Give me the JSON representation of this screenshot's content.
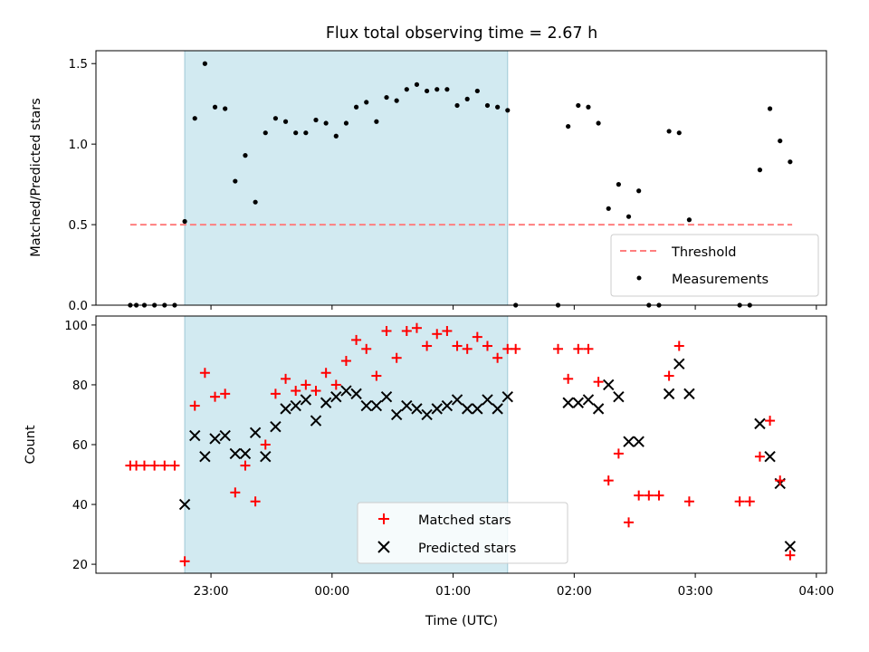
{
  "chart_data": [
    {
      "type": "scatter",
      "title": "Flux total observing time = 2.67 h",
      "xlabel": "",
      "ylabel": "Matched/Predicted stars",
      "ylim": [
        0,
        1.58
      ],
      "yticks": [
        0.0,
        0.5,
        1.0,
        1.5
      ],
      "ytick_labels": [
        "0.0",
        "0.5",
        "1.0",
        "1.5"
      ],
      "x_unit": "minutes since 00:00 UTC",
      "xlim": [
        -117,
        245
      ],
      "highlight_span": {
        "x_start": -73,
        "x_end": 87,
        "color": "#add8e6"
      },
      "threshold": {
        "name": "Threshold",
        "value": 0.5,
        "x_start": -100,
        "x_end": 228,
        "color": "#ff7f7f"
      },
      "legend": {
        "position": "lower right",
        "entries": [
          "Threshold",
          "Measurements"
        ]
      },
      "series": [
        {
          "name": "Measurements",
          "color": "#000000",
          "points": [
            [
              -100,
              0.0
            ],
            [
              -97,
              0.0
            ],
            [
              -93,
              0.0
            ],
            [
              -88,
              0.0
            ],
            [
              -83,
              0.0
            ],
            [
              -78,
              0.0
            ],
            [
              -73,
              0.52
            ],
            [
              -68,
              1.16
            ],
            [
              -63,
              1.5
            ],
            [
              -58,
              1.23
            ],
            [
              -53,
              1.22
            ],
            [
              -48,
              0.77
            ],
            [
              -43,
              0.93
            ],
            [
              -38,
              0.64
            ],
            [
              -33,
              1.07
            ],
            [
              -28,
              1.16
            ],
            [
              -23,
              1.14
            ],
            [
              -18,
              1.07
            ],
            [
              -13,
              1.07
            ],
            [
              -8,
              1.15
            ],
            [
              -3,
              1.13
            ],
            [
              2,
              1.05
            ],
            [
              7,
              1.13
            ],
            [
              12,
              1.23
            ],
            [
              17,
              1.26
            ],
            [
              22,
              1.14
            ],
            [
              27,
              1.29
            ],
            [
              32,
              1.27
            ],
            [
              37,
              1.34
            ],
            [
              42,
              1.37
            ],
            [
              47,
              1.33
            ],
            [
              52,
              1.34
            ],
            [
              57,
              1.34
            ],
            [
              62,
              1.24
            ],
            [
              67,
              1.28
            ],
            [
              72,
              1.33
            ],
            [
              77,
              1.24
            ],
            [
              82,
              1.23
            ],
            [
              87,
              1.21
            ],
            [
              91,
              0.0
            ],
            [
              112,
              0.0
            ],
            [
              117,
              1.11
            ],
            [
              122,
              1.24
            ],
            [
              127,
              1.23
            ],
            [
              132,
              1.13
            ],
            [
              137,
              0.6
            ],
            [
              142,
              0.75
            ],
            [
              147,
              0.55
            ],
            [
              152,
              0.71
            ],
            [
              157,
              0.0
            ],
            [
              162,
              0.0
            ],
            [
              167,
              1.08
            ],
            [
              172,
              1.07
            ],
            [
              177,
              0.53
            ],
            [
              202,
              0.0
            ],
            [
              207,
              0.0
            ],
            [
              212,
              0.84
            ],
            [
              217,
              1.22
            ],
            [
              222,
              1.02
            ],
            [
              227,
              0.89
            ]
          ]
        }
      ]
    },
    {
      "type": "scatter",
      "xlabel": "Time (UTC)",
      "ylabel": "Count",
      "ylim": [
        17,
        103
      ],
      "yticks": [
        20,
        40,
        60,
        80,
        100
      ],
      "ytick_labels": [
        "20",
        "40",
        "60",
        "80",
        "100"
      ],
      "x_unit": "minutes since 00:00 UTC",
      "xlim": [
        -117,
        245
      ],
      "xticks": [
        -60,
        0,
        60,
        120,
        180,
        240
      ],
      "xtick_labels": [
        "23:00",
        "00:00",
        "01:00",
        "02:00",
        "03:00",
        "04:00"
      ],
      "highlight_span": {
        "x_start": -73,
        "x_end": 87,
        "color": "#add8e6"
      },
      "legend": {
        "position": "lower center",
        "entries": [
          "Matched stars",
          "Predicted stars"
        ]
      },
      "series": [
        {
          "name": "Matched stars",
          "marker": "+",
          "color": "#ff0000",
          "points": [
            [
              -100,
              53
            ],
            [
              -97,
              53
            ],
            [
              -93,
              53
            ],
            [
              -88,
              53
            ],
            [
              -83,
              53
            ],
            [
              -78,
              53
            ],
            [
              -73,
              21
            ],
            [
              -68,
              73
            ],
            [
              -63,
              84
            ],
            [
              -58,
              76
            ],
            [
              -53,
              77
            ],
            [
              -48,
              44
            ],
            [
              -43,
              53
            ],
            [
              -38,
              41
            ],
            [
              -33,
              60
            ],
            [
              -28,
              77
            ],
            [
              -23,
              82
            ],
            [
              -18,
              78
            ],
            [
              -13,
              80
            ],
            [
              -8,
              78
            ],
            [
              -3,
              84
            ],
            [
              2,
              80
            ],
            [
              7,
              88
            ],
            [
              12,
              95
            ],
            [
              17,
              92
            ],
            [
              22,
              83
            ],
            [
              27,
              98
            ],
            [
              32,
              89
            ],
            [
              37,
              98
            ],
            [
              42,
              99
            ],
            [
              47,
              93
            ],
            [
              52,
              97
            ],
            [
              57,
              98
            ],
            [
              62,
              93
            ],
            [
              67,
              92
            ],
            [
              72,
              96
            ],
            [
              77,
              93
            ],
            [
              82,
              89
            ],
            [
              87,
              92
            ],
            [
              91,
              92
            ],
            [
              112,
              92
            ],
            [
              117,
              82
            ],
            [
              122,
              92
            ],
            [
              127,
              92
            ],
            [
              132,
              81
            ],
            [
              137,
              48
            ],
            [
              142,
              57
            ],
            [
              147,
              34
            ],
            [
              152,
              43
            ],
            [
              157,
              43
            ],
            [
              162,
              43
            ],
            [
              167,
              83
            ],
            [
              172,
              93
            ],
            [
              177,
              41
            ],
            [
              202,
              41
            ],
            [
              207,
              41
            ],
            [
              212,
              56
            ],
            [
              217,
              68
            ],
            [
              222,
              48
            ],
            [
              227,
              23
            ]
          ]
        },
        {
          "name": "Predicted stars",
          "marker": "x",
          "color": "#000000",
          "points": [
            [
              -73,
              40
            ],
            [
              -68,
              63
            ],
            [
              -63,
              56
            ],
            [
              -58,
              62
            ],
            [
              -53,
              63
            ],
            [
              -48,
              57
            ],
            [
              -43,
              57
            ],
            [
              -38,
              64
            ],
            [
              -33,
              56
            ],
            [
              -28,
              66
            ],
            [
              -23,
              72
            ],
            [
              -18,
              73
            ],
            [
              -13,
              75
            ],
            [
              -8,
              68
            ],
            [
              -3,
              74
            ],
            [
              2,
              76
            ],
            [
              7,
              78
            ],
            [
              12,
              77
            ],
            [
              17,
              73
            ],
            [
              22,
              73
            ],
            [
              27,
              76
            ],
            [
              32,
              70
            ],
            [
              37,
              73
            ],
            [
              42,
              72
            ],
            [
              47,
              70
            ],
            [
              52,
              72
            ],
            [
              57,
              73
            ],
            [
              62,
              75
            ],
            [
              67,
              72
            ],
            [
              72,
              72
            ],
            [
              77,
              75
            ],
            [
              82,
              72
            ],
            [
              87,
              76
            ],
            [
              117,
              74
            ],
            [
              122,
              74
            ],
            [
              127,
              75
            ],
            [
              132,
              72
            ],
            [
              137,
              80
            ],
            [
              142,
              76
            ],
            [
              147,
              61
            ],
            [
              152,
              61
            ],
            [
              167,
              77
            ],
            [
              172,
              87
            ],
            [
              177,
              77
            ],
            [
              212,
              67
            ],
            [
              217,
              56
            ],
            [
              222,
              47
            ],
            [
              227,
              26
            ]
          ]
        }
      ]
    }
  ]
}
